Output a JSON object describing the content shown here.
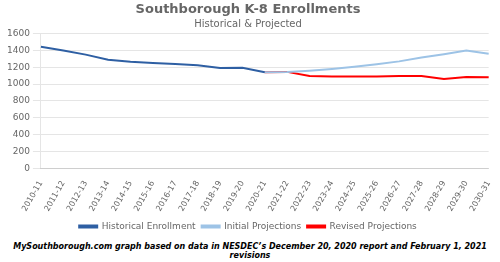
{
  "chart_data": {
    "type": "line",
    "title": "Southborough K-8 Enrollments",
    "subtitle": "Historical & Projected",
    "annotations": [
      "MySouthborough.com graph based on data in NESDEC’s December 20, 2020 report and February 1, 2021 revisions"
    ],
    "categories": [
      "2010-11",
      "2011-12",
      "2012-13",
      "2013-14",
      "2014-15",
      "2015-16",
      "2016-17",
      "2017-18",
      "2018-19",
      "2019-20",
      "2020-21",
      "2021-22",
      "2022-23",
      "2023-24",
      "2024-25",
      "2025-26",
      "2026-27",
      "2027-28",
      "2028-29",
      "2029-30",
      "2030-31"
    ],
    "series": [
      {
        "name": "Historical Enrollment",
        "color": "#2E5FA3",
        "values": [
          1445,
          1400,
          1350,
          1290,
          1265,
          1250,
          1240,
          1225,
          1190,
          1195,
          1140,
          null,
          null,
          null,
          null,
          null,
          null,
          null,
          null,
          null,
          null
        ]
      },
      {
        "name": "Initial Projections",
        "color": "#9DC3E6",
        "values": [
          null,
          null,
          null,
          null,
          null,
          null,
          null,
          null,
          null,
          null,
          1140,
          1145,
          1160,
          1180,
          1205,
          1235,
          1270,
          1315,
          1355,
          1400,
          1360
        ]
      },
      {
        "name": "Revised Projections",
        "color": "#FF0000",
        "values": [
          null,
          null,
          null,
          null,
          null,
          null,
          null,
          null,
          null,
          null,
          1140,
          1145,
          1095,
          1090,
          1090,
          1090,
          1095,
          1095,
          1060,
          1085,
          1080
        ]
      }
    ],
    "ylim": [
      0,
      1600
    ],
    "yticks": [
      0,
      200,
      400,
      600,
      800,
      1000,
      1200,
      1400,
      1600
    ],
    "grid": true,
    "legend": "bottom"
  }
}
